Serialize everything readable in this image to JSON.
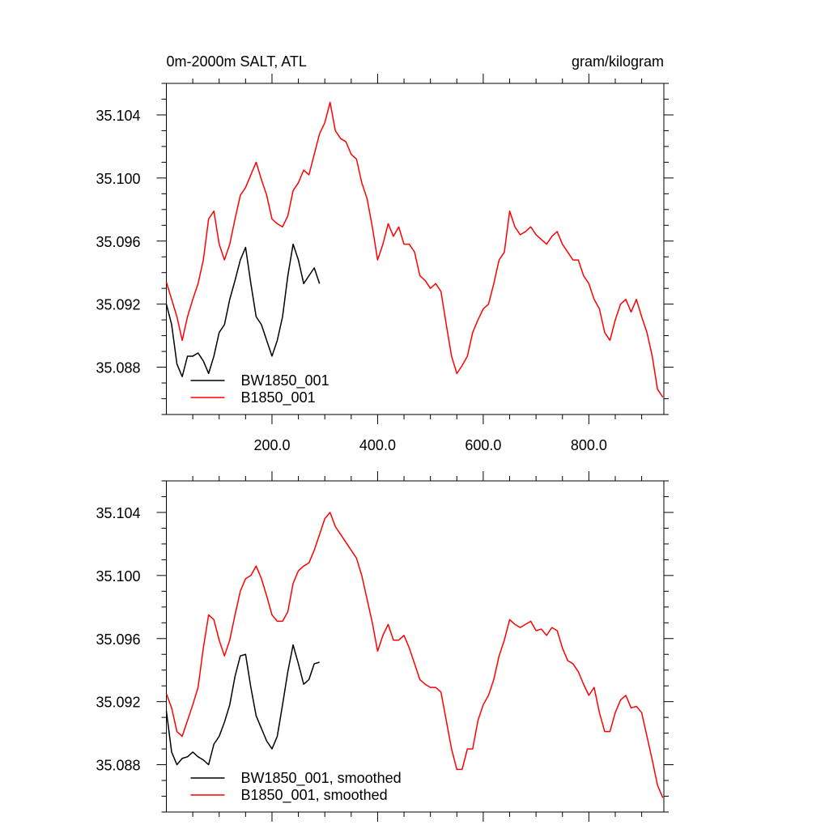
{
  "chart_data": [
    {
      "type": "line",
      "title": "0m-2000m SALT, ATL",
      "units": "gram/kilogram",
      "xlim": [
        0,
        942
      ],
      "ylim": [
        35.085,
        35.106
      ],
      "xticks": [
        {
          "value": 200,
          "label": "200.0"
        },
        {
          "value": 400,
          "label": "400.0"
        },
        {
          "value": 600,
          "label": "600.0"
        },
        {
          "value": 800,
          "label": "800.0"
        }
      ],
      "yticks": [
        35.088,
        35.092,
        35.096,
        {
          "value": 35.1,
          "label": "35.100"
        },
        35.104
      ],
      "legend": "lower left",
      "series": [
        {
          "name": "BW1850_001",
          "color": "#000000",
          "x": [
            0,
            10,
            20,
            30,
            40,
            50,
            60,
            70,
            80,
            90,
            100,
            110,
            120,
            130,
            140,
            150,
            160,
            170,
            180,
            190,
            200,
            210,
            220,
            230,
            240,
            250,
            260,
            270,
            280,
            290
          ],
          "values": [
            35.092,
            35.0907,
            35.0882,
            35.0874,
            35.0887,
            35.0887,
            35.0889,
            35.0884,
            35.0876,
            35.0887,
            35.0902,
            35.0907,
            35.0923,
            35.0935,
            35.0948,
            35.0956,
            35.0933,
            35.0912,
            35.0907,
            35.0897,
            35.0887,
            35.0897,
            35.0912,
            35.0938,
            35.0958,
            35.0948,
            35.0933,
            35.0938,
            35.0943,
            35.0933
          ]
        },
        {
          "name": "B1850_001",
          "color": "#ff0000",
          "x": [
            0,
            10,
            20,
            30,
            40,
            50,
            60,
            70,
            80,
            90,
            100,
            110,
            120,
            130,
            140,
            150,
            160,
            170,
            180,
            190,
            200,
            210,
            220,
            230,
            240,
            250,
            260,
            270,
            280,
            290,
            300,
            310,
            320,
            330,
            340,
            350,
            360,
            370,
            380,
            390,
            400,
            410,
            420,
            430,
            440,
            450,
            460,
            470,
            480,
            490,
            500,
            510,
            520,
            530,
            540,
            550,
            560,
            570,
            580,
            590,
            600,
            610,
            620,
            630,
            640,
            650,
            660,
            670,
            680,
            690,
            700,
            710,
            720,
            730,
            740,
            750,
            760,
            770,
            780,
            790,
            800,
            810,
            820,
            830,
            840,
            850,
            860,
            870,
            880,
            890,
            900,
            910,
            920,
            930,
            940
          ],
          "values": [
            35.0934,
            35.0923,
            35.0912,
            35.0897,
            35.0912,
            35.0923,
            35.0933,
            35.0948,
            35.0974,
            35.0979,
            35.0958,
            35.0948,
            35.0958,
            35.0974,
            35.0989,
            35.0994,
            35.1002,
            35.101,
            35.0999,
            35.0989,
            35.0974,
            35.0971,
            35.0969,
            35.0976,
            35.0992,
            35.0997,
            35.1005,
            35.1002,
            35.1015,
            35.1028,
            35.1035,
            35.1048,
            35.103,
            35.1025,
            35.1023,
            35.1015,
            35.1012,
            35.0997,
            35.0987,
            35.0969,
            35.0948,
            35.0958,
            35.0971,
            35.0963,
            35.0969,
            35.0958,
            35.0958,
            35.0953,
            35.0938,
            35.0935,
            35.093,
            35.0933,
            35.0928,
            35.0907,
            35.0887,
            35.0876,
            35.0881,
            35.0887,
            35.0902,
            35.091,
            35.0917,
            35.092,
            35.0933,
            35.0948,
            35.0953,
            35.0979,
            35.0969,
            35.0964,
            35.0966,
            35.0969,
            35.0964,
            35.0961,
            35.0958,
            35.0963,
            35.0966,
            35.0958,
            35.0953,
            35.0948,
            35.0948,
            35.0938,
            35.0933,
            35.0923,
            35.0917,
            35.0902,
            35.0897,
            35.091,
            35.092,
            35.0923,
            35.0915,
            35.0923,
            35.0912,
            35.0902,
            35.0887,
            35.0866,
            35.0861
          ]
        }
      ]
    },
    {
      "type": "line",
      "xlim": [
        0,
        942
      ],
      "ylim": [
        35.085,
        35.106
      ],
      "xticks": [
        200,
        400,
        600,
        800
      ],
      "show_xtick_labels": false,
      "yticks": [
        35.088,
        35.092,
        35.096,
        {
          "value": 35.1,
          "label": "35.100"
        },
        35.104
      ],
      "legend": "lower left",
      "series": [
        {
          "name": "BW1850_001, smoothed",
          "color": "#000000",
          "x": [
            0,
            10,
            20,
            30,
            40,
            50,
            60,
            70,
            80,
            90,
            100,
            110,
            120,
            130,
            140,
            150,
            160,
            170,
            180,
            190,
            200,
            210,
            220,
            230,
            240,
            250,
            260,
            270,
            280,
            290
          ],
          "values": [
            35.0914,
            35.0888,
            35.088,
            35.0884,
            35.0885,
            35.0888,
            35.0885,
            35.0883,
            35.088,
            35.0893,
            35.0898,
            35.0907,
            35.0918,
            35.0936,
            35.0949,
            35.095,
            35.0929,
            35.0911,
            35.0903,
            35.0895,
            35.089,
            35.0898,
            35.0918,
            35.0939,
            35.0956,
            35.0944,
            35.0931,
            35.0934,
            35.0944,
            35.0945
          ]
        },
        {
          "name": "B1850_001, smoothed",
          "color": "#ff0000",
          "x": [
            0,
            10,
            20,
            30,
            40,
            50,
            60,
            70,
            80,
            90,
            100,
            110,
            120,
            130,
            140,
            150,
            160,
            170,
            180,
            190,
            200,
            210,
            220,
            230,
            240,
            250,
            260,
            270,
            280,
            290,
            300,
            310,
            320,
            330,
            340,
            350,
            360,
            370,
            380,
            390,
            400,
            410,
            420,
            430,
            440,
            450,
            460,
            470,
            480,
            490,
            500,
            510,
            520,
            530,
            540,
            550,
            560,
            570,
            580,
            590,
            600,
            610,
            620,
            630,
            640,
            650,
            660,
            670,
            680,
            690,
            700,
            710,
            720,
            730,
            740,
            750,
            760,
            770,
            780,
            790,
            800,
            810,
            820,
            830,
            840,
            850,
            860,
            870,
            880,
            890,
            900,
            910,
            920,
            930,
            940
          ],
          "values": [
            35.0925,
            35.0916,
            35.0901,
            35.0898,
            35.0908,
            35.0918,
            35.0929,
            35.0954,
            35.0975,
            35.0972,
            35.0959,
            35.0949,
            35.0959,
            35.0975,
            35.099,
            35.0998,
            35.1,
            35.1006,
            35.0998,
            35.0987,
            35.0975,
            35.0971,
            35.0971,
            35.0977,
            35.0995,
            35.1003,
            35.1006,
            35.1008,
            35.1016,
            35.1026,
            35.1036,
            35.104,
            35.1031,
            35.1026,
            35.1021,
            35.1016,
            35.1011,
            35.1,
            35.0985,
            35.097,
            35.0952,
            35.0962,
            35.0969,
            35.0959,
            35.0959,
            35.0962,
            35.0954,
            35.0944,
            35.0934,
            35.0931,
            35.0929,
            35.0929,
            35.0926,
            35.0908,
            35.089,
            35.0877,
            35.0877,
            35.089,
            35.089,
            35.0908,
            35.0918,
            35.0924,
            35.0934,
            35.0949,
            35.0959,
            35.0972,
            35.0969,
            35.0967,
            35.0969,
            35.0971,
            35.0965,
            35.0966,
            35.0962,
            35.0967,
            35.0965,
            35.0954,
            35.0946,
            35.0944,
            35.0939,
            35.0931,
            35.0924,
            35.0929,
            35.0913,
            35.0901,
            35.0901,
            35.0913,
            35.0921,
            35.0924,
            35.0916,
            35.0917,
            35.0913,
            35.0898,
            35.0883,
            35.0867,
            35.0859
          ]
        }
      ]
    }
  ]
}
